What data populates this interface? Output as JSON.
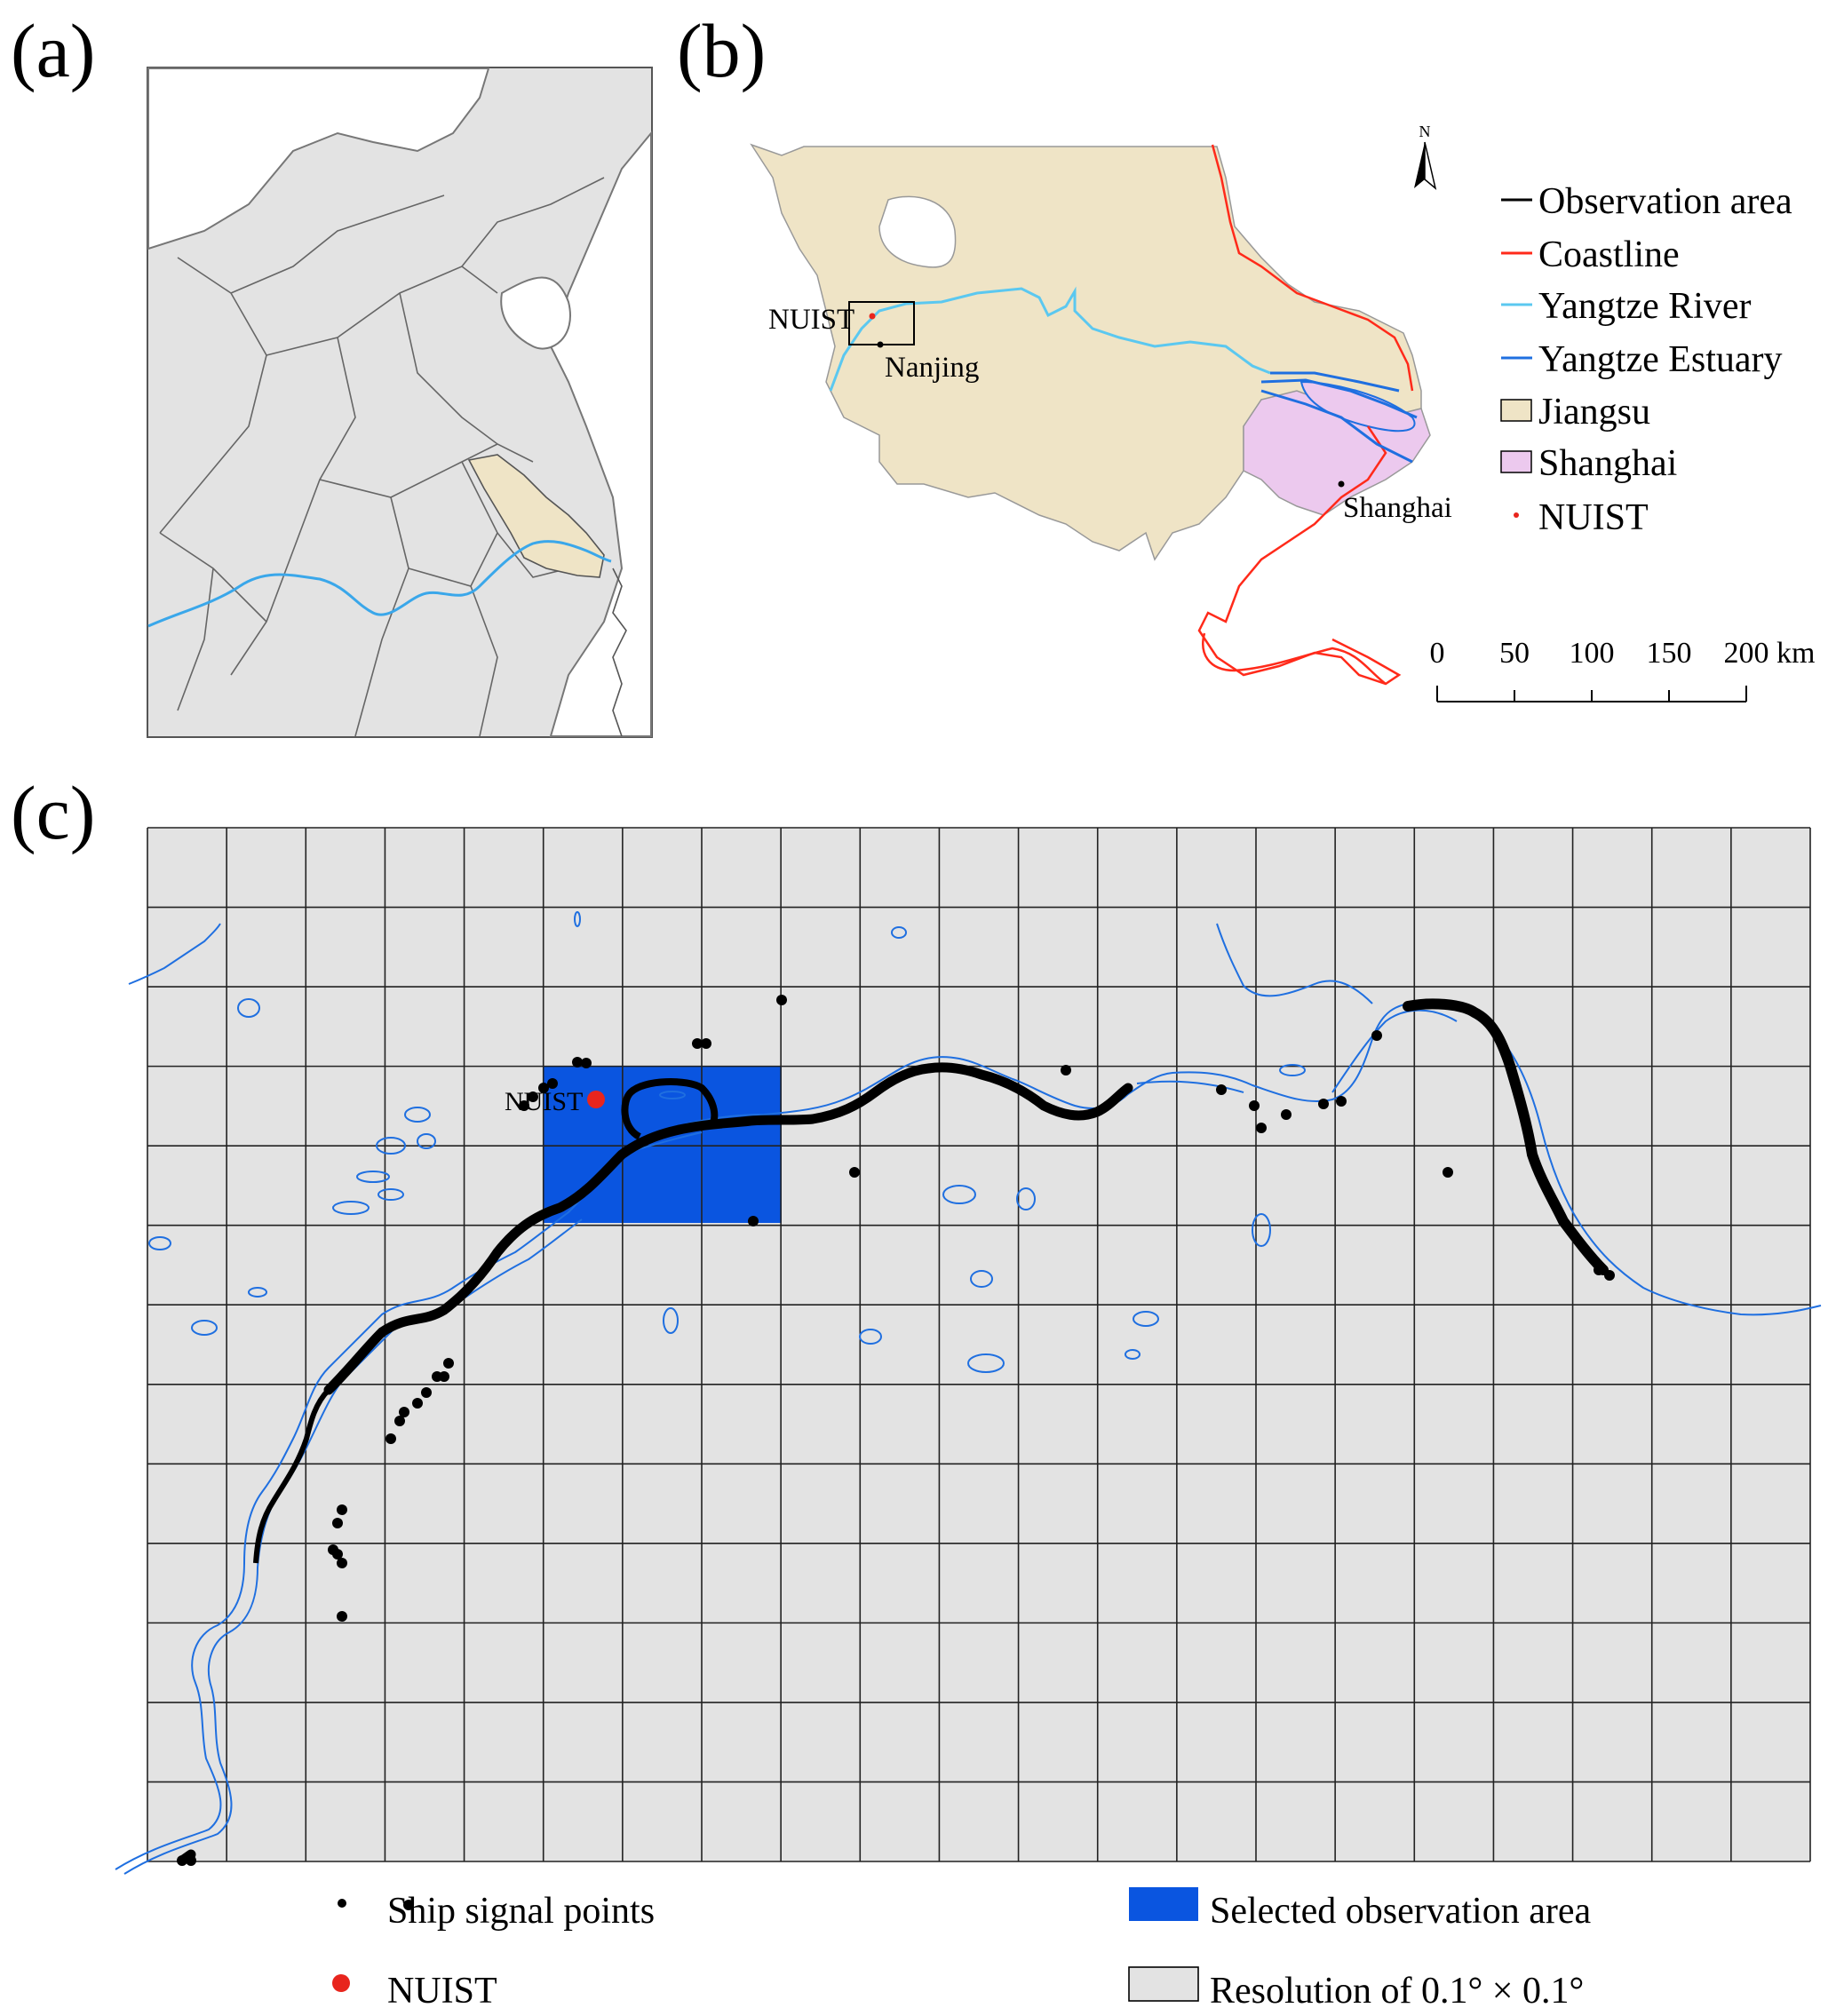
{
  "panels": {
    "a": {
      "label": "(a)"
    },
    "b": {
      "label": "(b)",
      "north_arrow": "N",
      "place_labels": {
        "nuist": "NUIST",
        "nanjing": "Nanjing",
        "shanghai": "Shanghai"
      },
      "legend": [
        {
          "label": "Observation area",
          "symbol": "line",
          "color": "#000000"
        },
        {
          "label": "Coastline",
          "symbol": "line",
          "color": "#ff2a1a"
        },
        {
          "label": "Yangtze River",
          "symbol": "line",
          "color": "#5bc8f0"
        },
        {
          "label": "Yangtze Estuary",
          "symbol": "line",
          "color": "#1f6fe0"
        },
        {
          "label": "Jiangsu",
          "symbol": "fill",
          "color": "#efe4c6"
        },
        {
          "label": "Shanghai",
          "symbol": "fill",
          "color": "#ecc9ee"
        },
        {
          "label": "NUIST",
          "symbol": "dot",
          "color": "#e8251d"
        }
      ],
      "scale_bar": {
        "ticks": [
          "0",
          "50",
          "100",
          "150",
          "200"
        ],
        "unit": "km"
      }
    },
    "c": {
      "label": "(c)",
      "grid": {
        "columns": 21,
        "rows": 13
      },
      "nuist_label": "NUIST",
      "legend": {
        "ship_points": "Ship signal points",
        "nuist": "NUIST",
        "selected_area": "Selected observation area",
        "resolution": "Resolution of 0.1° × 0.1°"
      }
    }
  },
  "colors": {
    "land_gray": "#e3e3e3",
    "jiangsu_fill": "#efe4c6",
    "shanghai_fill": "#ecc9ee",
    "coastline": "#ff2a1a",
    "river_light": "#5bc8f0",
    "river_blue": "#1f6fe0",
    "selected_area": "#0a55e0",
    "nuist_red": "#e8251d",
    "ship_point": "#000000"
  }
}
